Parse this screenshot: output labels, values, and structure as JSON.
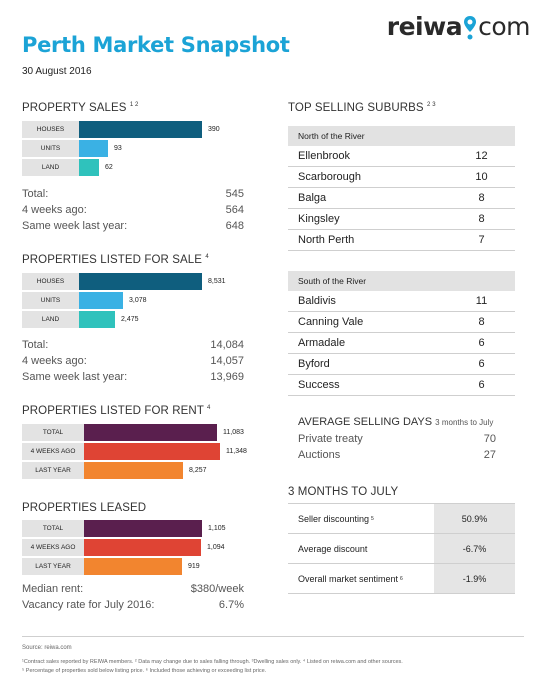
{
  "header": {
    "logo_main": "reiwa",
    "logo_suffix": "com",
    "title": "Perth Market Snapshot",
    "date": "30 August 2016"
  },
  "property_sales": {
    "title": "PROPERTY SALES",
    "sup": "1 2",
    "bars": [
      {
        "label": "HOUSES",
        "value": 390,
        "display": "390",
        "color": "#0f5e7e"
      },
      {
        "label": "UNITS",
        "value": 93,
        "display": "93",
        "color": "#3ab1e4"
      },
      {
        "label": "LAND",
        "value": 62,
        "display": "62",
        "color": "#2fc2bc"
      }
    ],
    "stats": [
      {
        "label": "Total:",
        "value": "545"
      },
      {
        "label": "4 weeks ago:",
        "value": "564"
      },
      {
        "label": "Same week last year:",
        "value": "648"
      }
    ]
  },
  "listed_for_sale": {
    "title": "PROPERTIES LISTED FOR SALE",
    "sup": "4",
    "bars": [
      {
        "label": "HOUSES",
        "value": 8531,
        "display": "8,531",
        "color": "#0f5e7e"
      },
      {
        "label": "UNITS",
        "value": 3078,
        "display": "3,078",
        "color": "#3ab1e4"
      },
      {
        "label": "LAND",
        "value": 2475,
        "display": "2,475",
        "color": "#2fc2bc"
      }
    ],
    "stats": [
      {
        "label": "Total:",
        "value": "14,084"
      },
      {
        "label": "4 weeks ago:",
        "value": "14,057"
      },
      {
        "label": "Same week last year:",
        "value": "13,969"
      }
    ]
  },
  "listed_for_rent": {
    "title": "PROPERTIES LISTED FOR RENT",
    "sup": "4",
    "bars": [
      {
        "label": "TOTAL",
        "value": 11083,
        "display": "11,083",
        "color": "#5a1f4e"
      },
      {
        "label": "4 WEEKS AGO",
        "value": 11348,
        "display": "11,348",
        "color": "#df4434"
      },
      {
        "label": "LAST YEAR",
        "value": 8257,
        "display": "8,257",
        "color": "#f2852f"
      }
    ]
  },
  "properties_leased": {
    "title": "PROPERTIES LEASED",
    "bars": [
      {
        "label": "TOTAL",
        "value": 1105,
        "display": "1,105",
        "color": "#5a1f4e"
      },
      {
        "label": "4 WEEKS AGO",
        "value": 1094,
        "display": "1,094",
        "color": "#df4434"
      },
      {
        "label": "LAST YEAR",
        "value": 919,
        "display": "919",
        "color": "#f2852f"
      }
    ],
    "stats": [
      {
        "label": "Median rent:",
        "value": "$380/week"
      },
      {
        "label": "Vacancy rate for July 2016:",
        "value": "6.7%"
      }
    ]
  },
  "top_suburbs": {
    "title": "TOP SELLING SUBURBS",
    "sup": "2 3",
    "north": {
      "heading": "North of the River",
      "rows": [
        {
          "name": "Ellenbrook",
          "value": "12"
        },
        {
          "name": "Scarborough",
          "value": "10"
        },
        {
          "name": "Balga",
          "value": "8"
        },
        {
          "name": "Kingsley",
          "value": "8"
        },
        {
          "name": "North Perth",
          "value": "7"
        }
      ]
    },
    "south": {
      "heading": "South of the River",
      "rows": [
        {
          "name": "Baldivis",
          "value": "11"
        },
        {
          "name": "Canning Vale",
          "value": "8"
        },
        {
          "name": "Armadale",
          "value": "6"
        },
        {
          "name": "Byford",
          "value": "6"
        },
        {
          "name": "Success",
          "value": "6"
        }
      ]
    }
  },
  "avg_selling_days": {
    "title": "AVERAGE SELLING DAYS",
    "subtitle": "3 months to July",
    "rows": [
      {
        "label": "Private treaty",
        "value": "70"
      },
      {
        "label": "Auctions",
        "value": "27"
      }
    ]
  },
  "three_months": {
    "title": "3 MONTHS TO JULY",
    "rows": [
      {
        "label": "Seller discounting",
        "sup": "5",
        "value": "50.9%"
      },
      {
        "label": "Average discount",
        "sup": "",
        "value": "-6.7%"
      },
      {
        "label": "Overall market sentiment",
        "sup": "6",
        "value": "-1.9%"
      }
    ]
  },
  "footer": {
    "source": "Source: reiwa.com",
    "note1": "¹Contract sales reported by REIWA members. ² Data may change due to sales falling through. ³Dwelling sales only. ⁴ Listed on reiwa.com and other sources.",
    "note2": "⁵ Percentage of properties sold below listing price. ⁶ Included those achieving or exceeding list price."
  },
  "colors": {
    "brand_blue": "#1ba3d6",
    "houses": "#0f5e7e",
    "units": "#3ab1e4",
    "land": "#2fc2bc",
    "rent_total": "#5a1f4e",
    "rent_4wk": "#df4434",
    "rent_lastyear": "#f2852f"
  }
}
